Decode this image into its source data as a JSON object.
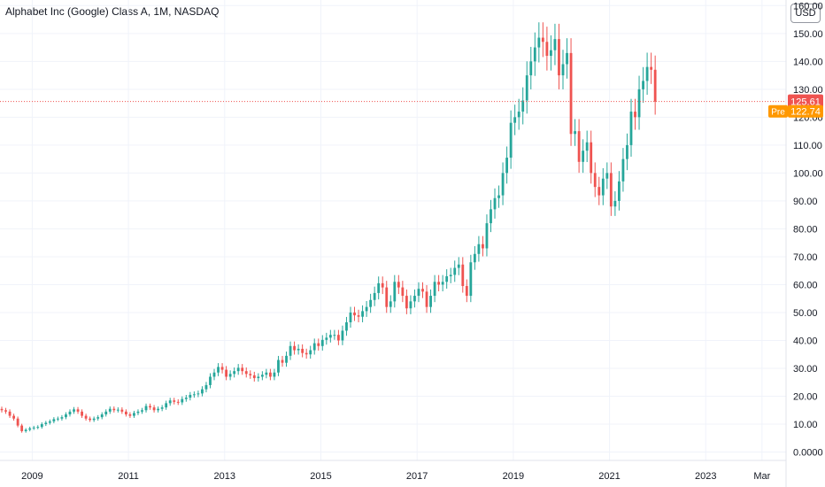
{
  "header": {
    "title": "Alphabet Inc (Google) Class A, 1M, NASDAQ",
    "currency_button": "USD"
  },
  "price_labels": {
    "last": "125.61",
    "pre_tag": "Pre",
    "pre": "122.74"
  },
  "colors": {
    "up": "#26a69a",
    "down": "#ef5350",
    "grid": "#f0f3fa",
    "axis_text": "#131722",
    "last_line": "#ef5350",
    "pre": "#ff9800"
  },
  "chart_data": {
    "type": "candlestick",
    "y_ticks": [
      "0.0000",
      "10.00",
      "20.00",
      "30.00",
      "40.00",
      "50.00",
      "60.00",
      "70.00",
      "80.00",
      "90.00",
      "100.00",
      "110.00",
      "120.00",
      "130.00",
      "140.00",
      "150.00",
      "160.00"
    ],
    "y_tick_values": [
      0,
      10,
      20,
      30,
      40,
      50,
      60,
      70,
      80,
      90,
      100,
      110,
      120,
      130,
      140,
      150,
      160
    ],
    "x_ticks": [
      {
        "label": "2009",
        "t": 2009.0
      },
      {
        "label": "2011",
        "t": 2011.0
      },
      {
        "label": "2013",
        "t": 2013.0
      },
      {
        "label": "2015",
        "t": 2015.0
      },
      {
        "label": "2017",
        "t": 2017.0
      },
      {
        "label": "2019",
        "t": 2019.0
      },
      {
        "label": "2021",
        "t": 2021.0
      },
      {
        "label": "2023",
        "t": 2023.0
      },
      {
        "label": "Mar",
        "t": 2024.17
      }
    ],
    "ylim": [
      -3,
      162
    ],
    "xlim": [
      2008.33,
      2024.67
    ],
    "grid": true,
    "last_price": 125.61,
    "pre_market_price": 122.74,
    "series": [
      {
        "name": "close",
        "start": 2008.33,
        "step": 0.08333,
        "values": [
          15,
          14.5,
          13,
          12,
          9.5,
          7.5,
          8,
          8.5,
          8.8,
          9,
          10,
          10.5,
          11,
          11.8,
          12,
          12.5,
          13.5,
          14.5,
          15.3,
          14.5,
          13,
          12,
          11.5,
          12,
          12.5,
          13.5,
          14.5,
          15.5,
          15,
          15.2,
          14.5,
          13.5,
          13,
          14,
          14.5,
          15,
          16.5,
          16,
          15,
          15.5,
          16,
          17.5,
          18.5,
          18,
          17.8,
          19,
          19.5,
          20.5,
          20.7,
          21,
          22.5,
          24,
          27,
          28.5,
          30.5,
          29.5,
          27,
          28,
          29,
          30.2,
          29,
          28,
          27.5,
          26.5,
          27,
          27.7,
          28.5,
          27,
          28.5,
          33,
          32,
          34.5,
          38,
          36.5,
          37,
          35.5,
          35,
          36.5,
          39,
          38,
          40.2,
          41,
          42,
          42,
          40,
          43.5,
          46.5,
          50,
          49,
          48.5,
          50.5,
          52,
          54.5,
          57,
          60.5,
          59,
          52,
          54,
          61,
          59,
          56,
          51.5,
          54,
          56,
          58.5,
          57.5,
          52,
          56,
          61,
          60,
          61,
          63,
          63.5,
          66,
          67.2,
          59.5,
          56,
          68,
          71,
          74.5,
          73,
          82,
          87,
          91,
          92,
          100,
          105.5,
          118,
          120,
          122,
          126,
          135,
          140,
          145,
          148.5,
          147,
          142,
          144,
          148,
          135,
          139,
          143,
          114,
          115,
          104,
          108,
          111,
          100,
          95,
          92,
          98,
          100,
          88,
          90,
          97,
          105,
          110,
          122,
          120,
          130,
          133,
          138,
          137,
          125.6
        ]
      }
    ]
  }
}
